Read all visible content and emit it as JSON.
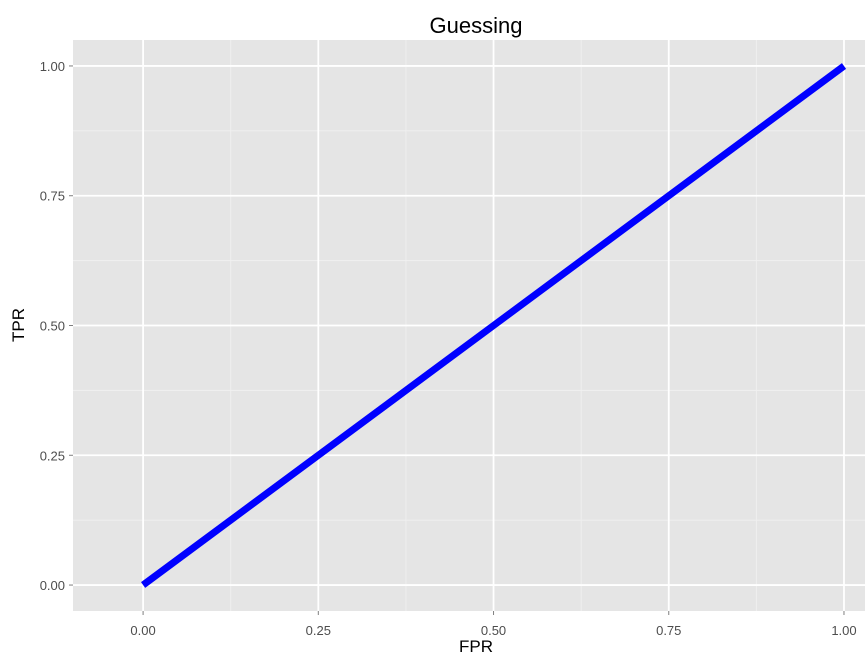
{
  "chart_data": {
    "type": "line",
    "title": "Guessing",
    "xlabel": "FPR",
    "ylabel": "TPR",
    "xlim": [
      -0.1,
      1.03
    ],
    "ylim": [
      -0.05,
      1.05
    ],
    "x_ticks": [
      "0.00",
      "0.25",
      "0.50",
      "0.75",
      "1.00"
    ],
    "y_ticks": [
      "0.00",
      "0.25",
      "0.50",
      "0.75",
      "1.00"
    ],
    "grid": true,
    "legend": "none",
    "series": [
      {
        "x": [
          0,
          1
        ],
        "y": [
          0,
          1
        ],
        "color": "#0000ff"
      }
    ],
    "colors": {
      "panel_background": "#e5e5e5",
      "grid_major": "#ffffff",
      "grid_minor": "#f0f0f0",
      "line": "#0000ff"
    }
  }
}
